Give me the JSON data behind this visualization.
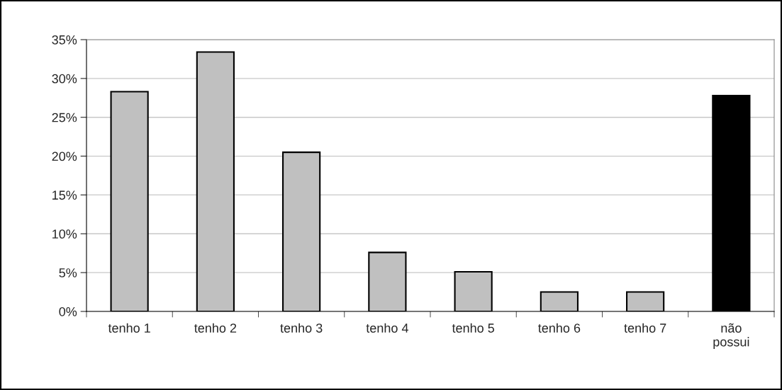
{
  "chart_data": {
    "type": "bar",
    "categories": [
      "tenho 1",
      "tenho 2",
      "tenho 3",
      "tenho 4",
      "tenho 5",
      "tenho 6",
      "tenho 7",
      "não\npossui"
    ],
    "values": [
      28.3,
      33.4,
      20.5,
      7.6,
      5.1,
      2.5,
      2.5,
      27.8
    ],
    "colors": [
      "#c0c0c0",
      "#c0c0c0",
      "#c0c0c0",
      "#c0c0c0",
      "#c0c0c0",
      "#c0c0c0",
      "#c0c0c0",
      "#000000"
    ],
    "ylim": [
      0,
      35
    ],
    "yticks": [
      {
        "value": 0,
        "label": "0%"
      },
      {
        "value": 5,
        "label": "5%"
      },
      {
        "value": 10,
        "label": "10%"
      },
      {
        "value": 15,
        "label": "15%"
      },
      {
        "value": 20,
        "label": "20%"
      },
      {
        "value": 25,
        "label": "25%"
      },
      {
        "value": 30,
        "label": "30%"
      },
      {
        "value": 35,
        "label": "35%"
      }
    ],
    "grid": "y",
    "legend": false
  }
}
